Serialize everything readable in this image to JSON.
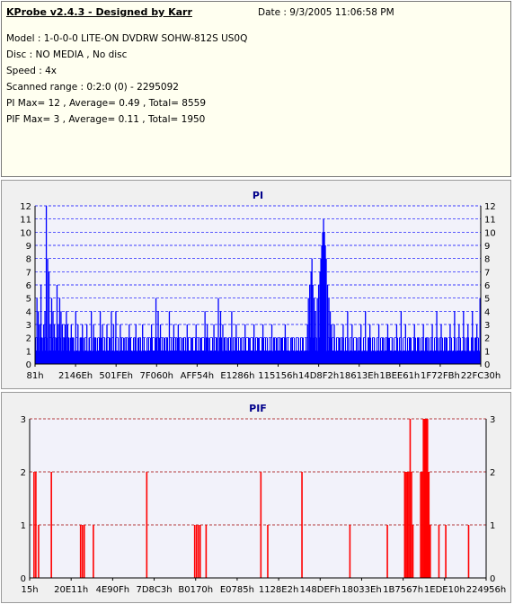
{
  "info": {
    "title": "KProbe v2.4.3 - Designed by Karr",
    "date": "Date : 9/3/2005 11:06:58 PM",
    "model": "Model : 1-0-0-0 LITE-ON DVDRW SOHW-812S  US0Q",
    "disc": "Disc : NO MEDIA , No disc",
    "speed": "Speed : 4x",
    "scanned": "Scanned range : 0:2:0 (0) - 2295092",
    "pi": "PI Max= 12 , Average= 0.49 , Total= 8559",
    "pif": "PIF Max= 3 , Average= 0.11 , Total= 1950"
  },
  "colors": {
    "pi_bar": "#0000ff",
    "pif_bar": "#ff0000",
    "title": "#00008b",
    "grid_pi": "#0000ff",
    "grid_pif": "#a00000",
    "plot_bg": "#f2f2fa",
    "panel_bg": "#f0f0f0"
  },
  "chart_data": [
    {
      "type": "bar",
      "title": "PI",
      "ylim": [
        0,
        12
      ],
      "yticks": [
        "0",
        "1",
        "2",
        "3",
        "4",
        "5",
        "6",
        "7",
        "8",
        "9",
        "10",
        "11",
        "12"
      ],
      "xticks": [
        "81h",
        "2146Eh",
        "501FEh",
        "7F060h",
        "AFF54h",
        "E1286h",
        "115156h",
        "14D8F2h",
        "18613Eh",
        "1BEE61h",
        "1F72FBh",
        "22FC30h"
      ],
      "x_range": [
        0,
        1
      ],
      "base": 1,
      "base_pattern": [
        2,
        1,
        2,
        1,
        1,
        2,
        1,
        2,
        1,
        2,
        2,
        1,
        1,
        2,
        1,
        2,
        1,
        1,
        2,
        2,
        1,
        2,
        1,
        2,
        1,
        2,
        1,
        1,
        2,
        1,
        2,
        1
      ],
      "spikes": [
        [
          0.003,
          5
        ],
        [
          0.006,
          4
        ],
        [
          0.009,
          3
        ],
        [
          0.012,
          6
        ],
        [
          0.015,
          2
        ],
        [
          0.018,
          3
        ],
        [
          0.021,
          4
        ],
        [
          0.024,
          12
        ],
        [
          0.027,
          8
        ],
        [
          0.03,
          7
        ],
        [
          0.033,
          3
        ],
        [
          0.036,
          5
        ],
        [
          0.039,
          4
        ],
        [
          0.042,
          3
        ],
        [
          0.045,
          2
        ],
        [
          0.048,
          6
        ],
        [
          0.051,
          3
        ],
        [
          0.054,
          5
        ],
        [
          0.057,
          4
        ],
        [
          0.06,
          3
        ],
        [
          0.063,
          2
        ],
        [
          0.066,
          3
        ],
        [
          0.069,
          4
        ],
        [
          0.072,
          3
        ],
        [
          0.075,
          2
        ],
        [
          0.08,
          3
        ],
        [
          0.085,
          2
        ],
        [
          0.09,
          4
        ],
        [
          0.095,
          3
        ],
        [
          0.1,
          2
        ],
        [
          0.105,
          3
        ],
        [
          0.11,
          2
        ],
        [
          0.115,
          3
        ],
        [
          0.12,
          2
        ],
        [
          0.125,
          4
        ],
        [
          0.13,
          3
        ],
        [
          0.135,
          2
        ],
        [
          0.145,
          4
        ],
        [
          0.15,
          3
        ],
        [
          0.155,
          2
        ],
        [
          0.16,
          3
        ],
        [
          0.17,
          4
        ],
        [
          0.175,
          3
        ],
        [
          0.18,
          4
        ],
        [
          0.19,
          3
        ],
        [
          0.2,
          2
        ],
        [
          0.21,
          3
        ],
        [
          0.22,
          2
        ],
        [
          0.225,
          3
        ],
        [
          0.235,
          2
        ],
        [
          0.24,
          3
        ],
        [
          0.25,
          2
        ],
        [
          0.26,
          3
        ],
        [
          0.27,
          5
        ],
        [
          0.275,
          4
        ],
        [
          0.28,
          3
        ],
        [
          0.29,
          2
        ],
        [
          0.3,
          4
        ],
        [
          0.31,
          3
        ],
        [
          0.315,
          2
        ],
        [
          0.32,
          3
        ],
        [
          0.33,
          2
        ],
        [
          0.34,
          3
        ],
        [
          0.35,
          2
        ],
        [
          0.36,
          3
        ],
        [
          0.37,
          2
        ],
        [
          0.38,
          4
        ],
        [
          0.385,
          3
        ],
        [
          0.39,
          2
        ],
        [
          0.4,
          3
        ],
        [
          0.41,
          5
        ],
        [
          0.415,
          4
        ],
        [
          0.42,
          3
        ],
        [
          0.43,
          2
        ],
        [
          0.44,
          4
        ],
        [
          0.45,
          3
        ],
        [
          0.46,
          2
        ],
        [
          0.47,
          3
        ],
        [
          0.48,
          2
        ],
        [
          0.49,
          3
        ],
        [
          0.5,
          2
        ],
        [
          0.51,
          3
        ],
        [
          0.52,
          2
        ],
        [
          0.53,
          3
        ],
        [
          0.54,
          2
        ],
        [
          0.55,
          2
        ],
        [
          0.56,
          3
        ],
        [
          0.575,
          2
        ],
        [
          0.59,
          2
        ],
        [
          0.6,
          2
        ],
        [
          0.61,
          3
        ],
        [
          0.612,
          5
        ],
        [
          0.615,
          6
        ],
        [
          0.618,
          7
        ],
        [
          0.62,
          8
        ],
        [
          0.622,
          6
        ],
        [
          0.625,
          5
        ],
        [
          0.628,
          4
        ],
        [
          0.632,
          5
        ],
        [
          0.635,
          6
        ],
        [
          0.638,
          7
        ],
        [
          0.64,
          8
        ],
        [
          0.642,
          9
        ],
        [
          0.644,
          10
        ],
        [
          0.646,
          11
        ],
        [
          0.648,
          10
        ],
        [
          0.65,
          9
        ],
        [
          0.652,
          8
        ],
        [
          0.655,
          6
        ],
        [
          0.658,
          5
        ],
        [
          0.661,
          4
        ],
        [
          0.664,
          3
        ],
        [
          0.67,
          3
        ],
        [
          0.68,
          2
        ],
        [
          0.69,
          3
        ],
        [
          0.7,
          4
        ],
        [
          0.71,
          3
        ],
        [
          0.72,
          2
        ],
        [
          0.73,
          3
        ],
        [
          0.74,
          4
        ],
        [
          0.75,
          3
        ],
        [
          0.76,
          2
        ],
        [
          0.77,
          3
        ],
        [
          0.78,
          2
        ],
        [
          0.79,
          3
        ],
        [
          0.8,
          2
        ],
        [
          0.81,
          3
        ],
        [
          0.82,
          4
        ],
        [
          0.83,
          3
        ],
        [
          0.84,
          2
        ],
        [
          0.85,
          3
        ],
        [
          0.86,
          2
        ],
        [
          0.87,
          3
        ],
        [
          0.88,
          2
        ],
        [
          0.89,
          3
        ],
        [
          0.9,
          4
        ],
        [
          0.91,
          3
        ],
        [
          0.92,
          2
        ],
        [
          0.93,
          3
        ],
        [
          0.94,
          4
        ],
        [
          0.95,
          3
        ],
        [
          0.96,
          4
        ],
        [
          0.97,
          3
        ],
        [
          0.98,
          4
        ],
        [
          0.99,
          3
        ],
        [
          0.997,
          5
        ]
      ]
    },
    {
      "type": "bar",
      "title": "PIF",
      "ylim": [
        0,
        3
      ],
      "yticks": [
        "0",
        "1",
        "2",
        "3"
      ],
      "xticks": [
        "15h",
        "20E11h",
        "4E90Fh",
        "7D8C3h",
        "B0170h",
        "E0785h",
        "1128E2h",
        "148DEFh",
        "18033Eh",
        "1B7567h",
        "1EDE10h",
        "224956h"
      ],
      "x_range": [
        0,
        1
      ],
      "spikes": [
        [
          0.008,
          2
        ],
        [
          0.012,
          2
        ],
        [
          0.018,
          1
        ],
        [
          0.046,
          2
        ],
        [
          0.11,
          1
        ],
        [
          0.114,
          1
        ],
        [
          0.118,
          1
        ],
        [
          0.138,
          1
        ],
        [
          0.255,
          2
        ],
        [
          0.36,
          1
        ],
        [
          0.364,
          1
        ],
        [
          0.368,
          1
        ],
        [
          0.372,
          1
        ],
        [
          0.385,
          1
        ],
        [
          0.505,
          2
        ],
        [
          0.52,
          1
        ],
        [
          0.595,
          2
        ],
        [
          0.7,
          1
        ],
        [
          0.782,
          1
        ],
        [
          0.82,
          2
        ],
        [
          0.823,
          2
        ],
        [
          0.826,
          2
        ],
        [
          0.829,
          2
        ],
        [
          0.832,
          3
        ],
        [
          0.835,
          2
        ],
        [
          0.838,
          1
        ],
        [
          0.855,
          2
        ],
        [
          0.858,
          2
        ],
        [
          0.861,
          3
        ],
        [
          0.864,
          3
        ],
        [
          0.867,
          3
        ],
        [
          0.87,
          3
        ],
        [
          0.873,
          2
        ],
        [
          0.876,
          1
        ],
        [
          0.895,
          1
        ],
        [
          0.91,
          1
        ],
        [
          0.96,
          1
        ]
      ]
    }
  ]
}
